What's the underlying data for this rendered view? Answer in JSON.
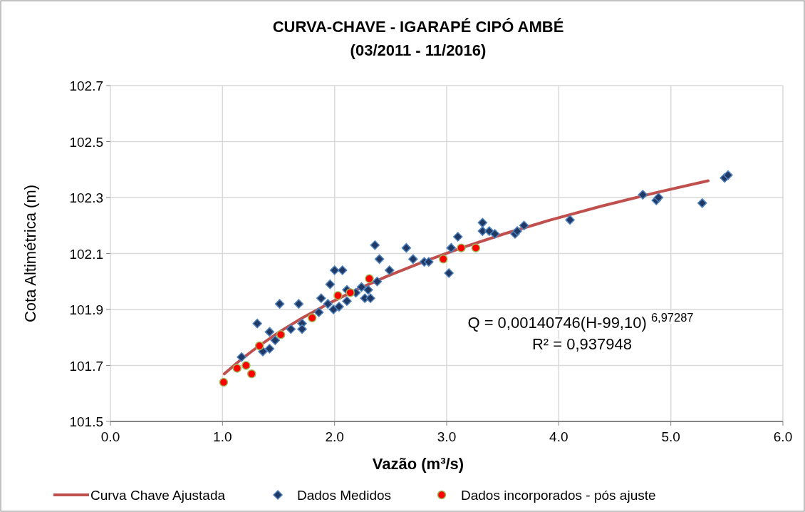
{
  "chart_data": {
    "type": "scatter",
    "title": "CURVA-CHAVE - IGARAPÉ CIPÓ AMBÉ",
    "subtitle": "(03/2011 - 11/2016)",
    "xlabel": "Vazão  (m³/s)",
    "ylabel": "Cota Altimétrica  (m)",
    "xlim": [
      0,
      6
    ],
    "ylim": [
      101.5,
      102.7
    ],
    "xticks": [
      {
        "value": 0,
        "label": "0.0"
      },
      {
        "value": 1,
        "label": "1.0"
      },
      {
        "value": 2,
        "label": "2.0"
      },
      {
        "value": 3,
        "label": "3.0"
      },
      {
        "value": 4,
        "label": "4.0"
      },
      {
        "value": 5,
        "label": "5.0"
      },
      {
        "value": 6,
        "label": "6.0"
      }
    ],
    "yticks": [
      101.5,
      101.7,
      101.9,
      102.1,
      102.3,
      102.5,
      102.7
    ],
    "grid": true,
    "legend": "bottom",
    "annotations": [
      "Q = 0,00140746(H-99,10) $^{6,97287}$",
      "R² = 0,937948"
    ],
    "series": [
      {
        "name": "Curva Chave Ajustada",
        "type": "line",
        "color": "#c0504d",
        "marker": "none",
        "line_style": "solid",
        "x": [
          1.016,
          1.161,
          1.326,
          1.508,
          1.713,
          1.941,
          2.193,
          2.476,
          2.788,
          3.132,
          3.512,
          3.928,
          4.389,
          4.895,
          5.333
        ],
        "values": [
          101.67,
          101.72,
          101.77,
          101.82,
          101.87,
          101.92,
          101.97,
          102.02,
          102.07,
          102.12,
          102.17,
          102.22,
          102.27,
          102.32,
          102.36
        ]
      },
      {
        "name": "Dados Medidos",
        "type": "scatter",
        "color": "#1f3864",
        "marker": "diamond",
        "x": [
          1.17,
          1.31,
          1.42,
          1.36,
          1.42,
          1.47,
          1.51,
          1.61,
          1.68,
          1.71,
          1.71,
          1.86,
          1.88,
          1.94,
          1.96,
          2.0,
          2.07,
          1.99,
          2.04,
          2.11,
          2.11,
          2.19,
          2.24,
          2.3,
          2.27,
          2.32,
          2.38,
          2.49,
          2.36,
          2.4,
          2.64,
          2.7,
          2.8,
          2.84,
          3.1,
          3.04,
          3.02,
          3.32,
          3.32,
          3.38,
          3.43,
          3.61,
          3.63,
          3.69,
          4.1,
          4.75,
          4.87,
          4.89,
          5.28,
          5.48,
          5.51
        ],
        "values": [
          101.73,
          101.85,
          101.82,
          101.75,
          101.76,
          101.79,
          101.92,
          101.83,
          101.92,
          101.85,
          101.83,
          101.89,
          101.94,
          101.92,
          101.99,
          102.04,
          102.04,
          101.9,
          101.91,
          101.97,
          101.93,
          101.96,
          101.98,
          101.97,
          101.94,
          101.94,
          102.0,
          102.04,
          102.13,
          102.08,
          102.12,
          102.08,
          102.07,
          102.07,
          102.16,
          102.12,
          102.03,
          102.21,
          102.18,
          102.18,
          102.17,
          102.17,
          102.18,
          102.2,
          102.22,
          102.31,
          102.29,
          102.3,
          102.28,
          102.37,
          102.38
        ]
      },
      {
        "name": "Dados incorporados - pós ajuste",
        "type": "scatter",
        "color": "#ff0000",
        "marker": "circle",
        "x": [
          1.01,
          1.13,
          1.21,
          1.26,
          1.33,
          1.52,
          1.8,
          2.03,
          2.14,
          2.31,
          2.97,
          3.13,
          3.26
        ],
        "values": [
          101.64,
          101.69,
          101.7,
          101.67,
          101.77,
          101.81,
          101.87,
          101.95,
          101.96,
          102.01,
          102.08,
          102.12,
          102.12
        ]
      }
    ]
  }
}
